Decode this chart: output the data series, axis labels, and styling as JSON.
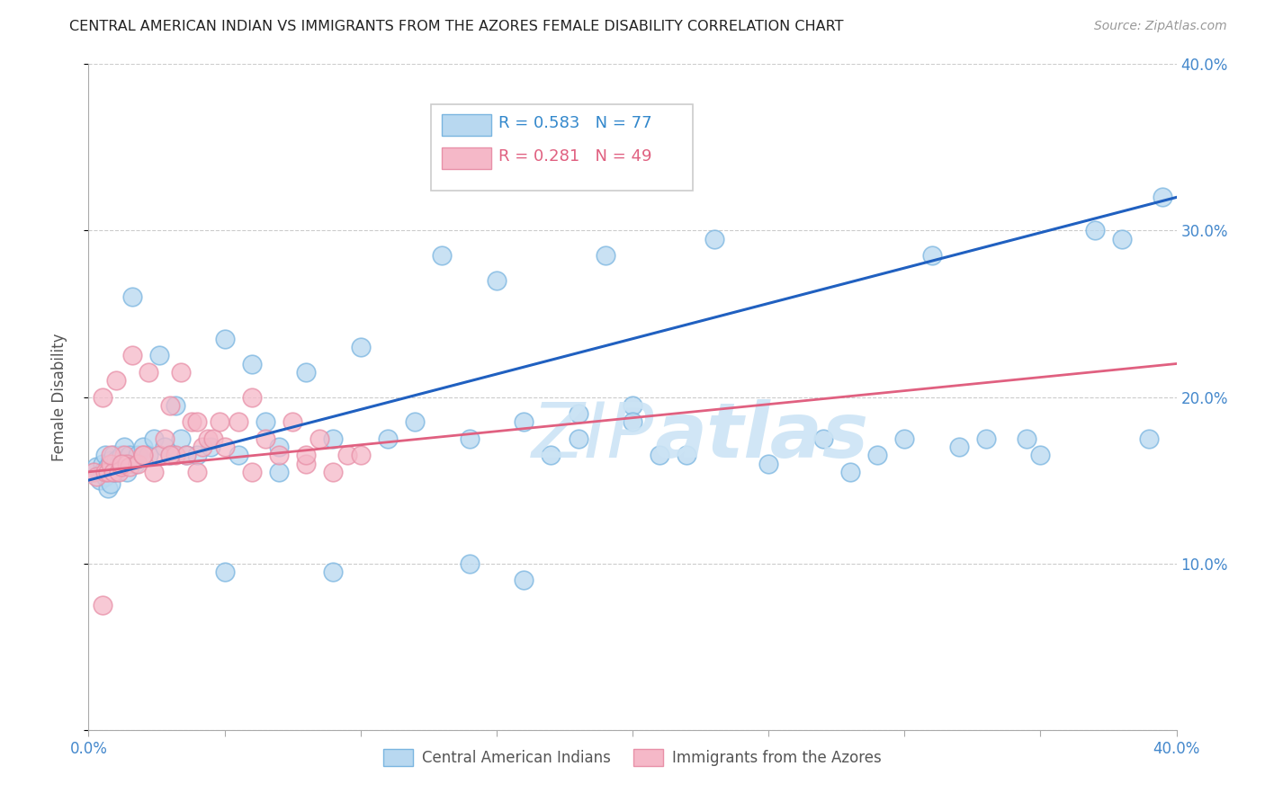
{
  "title": "CENTRAL AMERICAN INDIAN VS IMMIGRANTS FROM THE AZORES FEMALE DISABILITY CORRELATION CHART",
  "source": "Source: ZipAtlas.com",
  "ylabel": "Female Disability",
  "xlim": [
    0.0,
    0.4
  ],
  "ylim": [
    0.0,
    0.4
  ],
  "color_blue_face": "#b8d8f0",
  "color_blue_edge": "#7ab5e0",
  "color_pink_face": "#f5b8c8",
  "color_pink_edge": "#e890a8",
  "line_blue": "#2060c0",
  "line_pink": "#e06080",
  "watermark": "ZIPatlas",
  "legend_r1": "R = 0.583",
  "legend_n1": "N = 77",
  "legend_r2": "R = 0.281",
  "legend_n2": "N = 49",
  "blue_x": [
    0.002,
    0.003,
    0.004,
    0.005,
    0.005,
    0.006,
    0.006,
    0.007,
    0.007,
    0.008,
    0.008,
    0.009,
    0.009,
    0.01,
    0.01,
    0.011,
    0.012,
    0.012,
    0.013,
    0.014,
    0.015,
    0.016,
    0.017,
    0.018,
    0.02,
    0.022,
    0.024,
    0.026,
    0.028,
    0.03,
    0.032,
    0.034,
    0.036,
    0.04,
    0.045,
    0.05,
    0.055,
    0.06,
    0.065,
    0.07,
    0.08,
    0.09,
    0.1,
    0.11,
    0.12,
    0.13,
    0.14,
    0.15,
    0.16,
    0.17,
    0.18,
    0.19,
    0.2,
    0.21,
    0.22,
    0.23,
    0.25,
    0.27,
    0.29,
    0.31,
    0.33,
    0.35,
    0.37,
    0.38,
    0.39,
    0.395,
    0.14,
    0.16,
    0.18,
    0.2,
    0.05,
    0.07,
    0.09,
    0.28,
    0.3,
    0.32,
    0.345
  ],
  "blue_y": [
    0.155,
    0.158,
    0.15,
    0.16,
    0.155,
    0.152,
    0.165,
    0.145,
    0.158,
    0.162,
    0.148,
    0.155,
    0.165,
    0.155,
    0.162,
    0.16,
    0.158,
    0.165,
    0.17,
    0.155,
    0.165,
    0.26,
    0.16,
    0.165,
    0.17,
    0.165,
    0.175,
    0.225,
    0.17,
    0.165,
    0.195,
    0.175,
    0.165,
    0.165,
    0.17,
    0.235,
    0.165,
    0.22,
    0.185,
    0.17,
    0.215,
    0.175,
    0.23,
    0.175,
    0.185,
    0.285,
    0.175,
    0.27,
    0.185,
    0.165,
    0.19,
    0.285,
    0.195,
    0.165,
    0.165,
    0.295,
    0.16,
    0.175,
    0.165,
    0.285,
    0.175,
    0.165,
    0.3,
    0.295,
    0.175,
    0.32,
    0.1,
    0.09,
    0.175,
    0.185,
    0.095,
    0.155,
    0.095,
    0.155,
    0.175,
    0.17,
    0.175
  ],
  "pink_x": [
    0.002,
    0.003,
    0.005,
    0.006,
    0.007,
    0.008,
    0.009,
    0.01,
    0.011,
    0.012,
    0.013,
    0.014,
    0.015,
    0.016,
    0.018,
    0.02,
    0.022,
    0.024,
    0.026,
    0.028,
    0.03,
    0.032,
    0.034,
    0.036,
    0.038,
    0.04,
    0.042,
    0.044,
    0.046,
    0.048,
    0.05,
    0.055,
    0.06,
    0.065,
    0.07,
    0.075,
    0.08,
    0.085,
    0.09,
    0.095,
    0.1,
    0.005,
    0.008,
    0.012,
    0.02,
    0.03,
    0.04,
    0.06,
    0.08
  ],
  "pink_y": [
    0.155,
    0.152,
    0.075,
    0.155,
    0.155,
    0.16,
    0.155,
    0.21,
    0.155,
    0.158,
    0.165,
    0.16,
    0.158,
    0.225,
    0.16,
    0.165,
    0.215,
    0.155,
    0.165,
    0.175,
    0.195,
    0.165,
    0.215,
    0.165,
    0.185,
    0.185,
    0.17,
    0.175,
    0.175,
    0.185,
    0.17,
    0.185,
    0.2,
    0.175,
    0.165,
    0.185,
    0.16,
    0.175,
    0.155,
    0.165,
    0.165,
    0.2,
    0.165,
    0.16,
    0.165,
    0.165,
    0.155,
    0.155,
    0.165
  ]
}
